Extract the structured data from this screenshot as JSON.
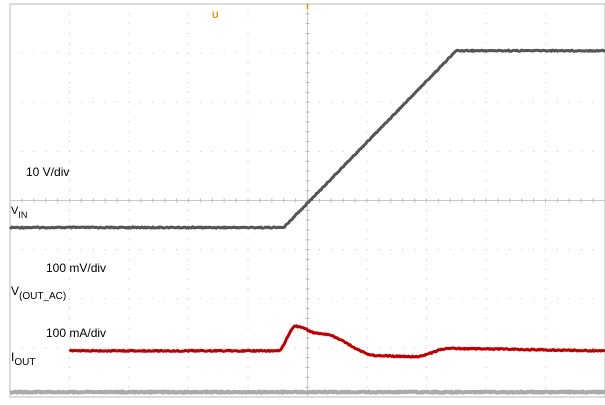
{
  "chart_data": {
    "type": "line",
    "xlabel": "",
    "ylabel": "",
    "grid": true,
    "x_divisions": 10,
    "y_divisions": 8,
    "trigger_marker": "U",
    "series": [
      {
        "key": "vin",
        "label_main": "V",
        "label_sub": "IN",
        "scale_text": "10 V/div",
        "color": "#555555",
        "points": [
          [
            0.0,
            -0.1
          ],
          [
            4.6,
            -0.1
          ],
          [
            7.5,
            3.5
          ],
          [
            10.0,
            3.5
          ]
        ]
      },
      {
        "key": "vout_ac",
        "label_main": "V",
        "label_sub": "(OUT_AC)",
        "scale_text": "100 mV/div",
        "color": "#c00000",
        "points": [
          [
            1.0,
            0.0
          ],
          [
            4.5,
            0.0
          ],
          [
            4.8,
            0.5
          ],
          [
            5.2,
            0.35
          ],
          [
            6.2,
            -0.1
          ],
          [
            6.8,
            -0.12
          ],
          [
            7.4,
            0.05
          ],
          [
            10.0,
            0.0
          ]
        ]
      },
      {
        "key": "iout",
        "label_main": "I",
        "label_sub": "OUT",
        "scale_text": "100 mA/div",
        "color": "#aaaaaa",
        "points": [
          [
            0.0,
            0.0
          ],
          [
            10.0,
            0.0
          ]
        ]
      }
    ]
  }
}
